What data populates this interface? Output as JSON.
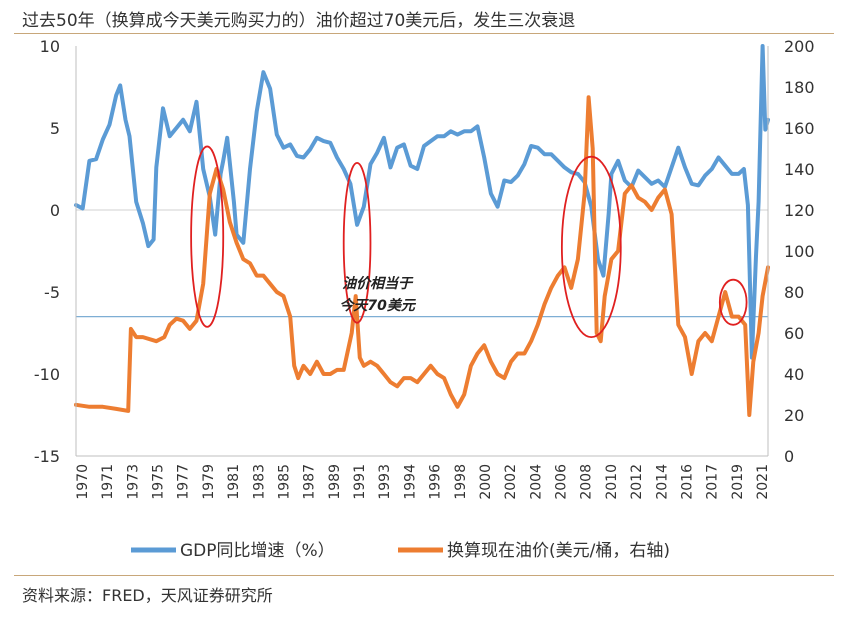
{
  "title": "过去50年（换算成今天美元购买力的）油价超过70美元后，发生三次衰退",
  "source": "资料来源：FRED，天风证券研究所",
  "chart_data": {
    "type": "line",
    "x_tick_labels": [
      "1970",
      "1971",
      "1973",
      "1975",
      "1977",
      "1979",
      "1981",
      "1983",
      "1985",
      "1987",
      "1989",
      "1991",
      "1993",
      "1994",
      "1996",
      "1998",
      "2000",
      "2002",
      "2004",
      "2006",
      "2008",
      "2010",
      "2012",
      "2014",
      "2016",
      "2017",
      "2019",
      "2021"
    ],
    "x_range": [
      1970,
      2021.7
    ],
    "y_left_ticks": [
      "10",
      "5",
      "0",
      "-5",
      "-10",
      "-15"
    ],
    "y_left_range": [
      -15,
      10
    ],
    "y_right_ticks": [
      "200",
      "180",
      "160",
      "140",
      "120",
      "100",
      "80",
      "60",
      "40",
      "20",
      "0"
    ],
    "y_right_range": [
      0,
      200
    ],
    "reference_line": {
      "axis": "right",
      "value": 68
    },
    "annotation": {
      "line1": "油价相当于",
      "line2": "今天70美元",
      "x": 1992.5,
      "y_right": 80
    },
    "highlight_ellipses": [
      {
        "cx": 1979.8,
        "cy_right": 107,
        "rx_years": 1.2,
        "ry_right": 44
      },
      {
        "cx": 1991.0,
        "cy_right": 104,
        "rx_years": 1.0,
        "ry_right": 39
      },
      {
        "cx": 2008.5,
        "cy_right": 102,
        "rx_years": 2.2,
        "ry_right": 44
      },
      {
        "cx": 2019.1,
        "cy_right": 75,
        "rx_years": 1.0,
        "ry_right": 11
      }
    ],
    "colors": {
      "gdp": "#5b9bd5",
      "oil": "#ed7d31",
      "ref": "#7eaed4",
      "ellipse": "#e02020"
    },
    "series": [
      {
        "name": "GDP同比增速（%）",
        "axis": "left",
        "points": [
          [
            1970,
            0.3
          ],
          [
            1970.5,
            0.1
          ],
          [
            1971,
            3.0
          ],
          [
            1971.5,
            3.1
          ],
          [
            1972,
            4.3
          ],
          [
            1972.5,
            5.2
          ],
          [
            1973,
            7.0
          ],
          [
            1973.3,
            7.6
          ],
          [
            1973.7,
            5.5
          ],
          [
            1974,
            4.5
          ],
          [
            1974.5,
            0.5
          ],
          [
            1975,
            -0.8
          ],
          [
            1975.4,
            -2.2
          ],
          [
            1975.8,
            -1.8
          ],
          [
            1976,
            2.6
          ],
          [
            1976.5,
            6.2
          ],
          [
            1977,
            4.5
          ],
          [
            1977.5,
            5.0
          ],
          [
            1978,
            5.5
          ],
          [
            1978.5,
            4.8
          ],
          [
            1979,
            6.6
          ],
          [
            1979.5,
            2.5
          ],
          [
            1980,
            0.8
          ],
          [
            1980.4,
            -1.5
          ],
          [
            1980.8,
            2.2
          ],
          [
            1981,
            3.0
          ],
          [
            1981.3,
            4.4
          ],
          [
            1981.8,
            0.5
          ],
          [
            1982,
            -1.5
          ],
          [
            1982.5,
            -2.0
          ],
          [
            1983,
            2.5
          ],
          [
            1983.5,
            6.0
          ],
          [
            1984,
            8.4
          ],
          [
            1984.5,
            7.4
          ],
          [
            1985,
            4.6
          ],
          [
            1985.5,
            3.8
          ],
          [
            1986,
            4.0
          ],
          [
            1986.5,
            3.3
          ],
          [
            1987,
            3.2
          ],
          [
            1987.5,
            3.7
          ],
          [
            1988,
            4.4
          ],
          [
            1988.5,
            4.2
          ],
          [
            1989,
            4.1
          ],
          [
            1989.5,
            3.2
          ],
          [
            1990,
            2.5
          ],
          [
            1990.5,
            1.6
          ],
          [
            1991,
            -0.9
          ],
          [
            1991.5,
            0.2
          ],
          [
            1992,
            2.8
          ],
          [
            1992.5,
            3.5
          ],
          [
            1993,
            4.4
          ],
          [
            1993.5,
            2.6
          ],
          [
            1994,
            3.8
          ],
          [
            1994.5,
            4.0
          ],
          [
            1995,
            2.7
          ],
          [
            1995.5,
            2.5
          ],
          [
            1996,
            3.9
          ],
          [
            1996.5,
            4.2
          ],
          [
            1997,
            4.5
          ],
          [
            1997.5,
            4.5
          ],
          [
            1998,
            4.8
          ],
          [
            1998.5,
            4.6
          ],
          [
            1999,
            4.8
          ],
          [
            1999.5,
            4.8
          ],
          [
            2000,
            5.1
          ],
          [
            2000.5,
            3.2
          ],
          [
            2001,
            1.0
          ],
          [
            2001.5,
            0.2
          ],
          [
            2002,
            1.8
          ],
          [
            2002.5,
            1.7
          ],
          [
            2003,
            2.1
          ],
          [
            2003.5,
            2.8
          ],
          [
            2004,
            3.9
          ],
          [
            2004.5,
            3.8
          ],
          [
            2005,
            3.4
          ],
          [
            2005.5,
            3.4
          ],
          [
            2006,
            3.0
          ],
          [
            2006.5,
            2.6
          ],
          [
            2007,
            2.3
          ],
          [
            2007.5,
            2.2
          ],
          [
            2008,
            1.7
          ],
          [
            2008.5,
            0.2
          ],
          [
            2009,
            -3.0
          ],
          [
            2009.4,
            -4.0
          ],
          [
            2009.8,
            -0.2
          ],
          [
            2010,
            2.2
          ],
          [
            2010.5,
            3.0
          ],
          [
            2011,
            1.8
          ],
          [
            2011.5,
            1.4
          ],
          [
            2012,
            2.4
          ],
          [
            2012.5,
            2.0
          ],
          [
            2013,
            1.6
          ],
          [
            2013.5,
            1.8
          ],
          [
            2014,
            1.4
          ],
          [
            2014.5,
            2.6
          ],
          [
            2015,
            3.8
          ],
          [
            2015.5,
            2.6
          ],
          [
            2016,
            1.6
          ],
          [
            2016.5,
            1.5
          ],
          [
            2017,
            2.1
          ],
          [
            2017.5,
            2.5
          ],
          [
            2018,
            3.2
          ],
          [
            2018.5,
            2.7
          ],
          [
            2019,
            2.2
          ],
          [
            2019.5,
            2.2
          ],
          [
            2019.9,
            2.5
          ],
          [
            2020.2,
            0.3
          ],
          [
            2020.5,
            -9.0
          ],
          [
            2020.8,
            -2.8
          ],
          [
            2021.0,
            0.5
          ],
          [
            2021.3,
            10.0
          ],
          [
            2021.5,
            4.9
          ],
          [
            2021.7,
            5.5
          ]
        ]
      },
      {
        "name": "换算现在油价(美元/桶，右轴)",
        "axis": "right",
        "points": [
          [
            1970,
            25
          ],
          [
            1971,
            24
          ],
          [
            1972,
            24
          ],
          [
            1973,
            23
          ],
          [
            1973.9,
            22
          ],
          [
            1974.1,
            62
          ],
          [
            1974.5,
            58
          ],
          [
            1975,
            58
          ],
          [
            1976,
            56
          ],
          [
            1976.6,
            58
          ],
          [
            1977,
            64
          ],
          [
            1977.5,
            67
          ],
          [
            1978,
            66
          ],
          [
            1978.5,
            62
          ],
          [
            1979,
            66
          ],
          [
            1979.5,
            84
          ],
          [
            1980,
            128
          ],
          [
            1980.5,
            140
          ],
          [
            1981,
            130
          ],
          [
            1981.5,
            114
          ],
          [
            1982,
            104
          ],
          [
            1982.5,
            96
          ],
          [
            1983,
            94
          ],
          [
            1983.5,
            88
          ],
          [
            1984,
            88
          ],
          [
            1984.5,
            84
          ],
          [
            1985,
            80
          ],
          [
            1985.5,
            78
          ],
          [
            1986,
            68
          ],
          [
            1986.3,
            44
          ],
          [
            1986.6,
            38
          ],
          [
            1987,
            44
          ],
          [
            1987.5,
            40
          ],
          [
            1988,
            46
          ],
          [
            1988.5,
            40
          ],
          [
            1989,
            40
          ],
          [
            1989.5,
            42
          ],
          [
            1990,
            42
          ],
          [
            1990.6,
            60
          ],
          [
            1990.9,
            78
          ],
          [
            1991.2,
            48
          ],
          [
            1991.5,
            44
          ],
          [
            1992,
            46
          ],
          [
            1992.5,
            44
          ],
          [
            1993,
            40
          ],
          [
            1993.5,
            36
          ],
          [
            1994,
            34
          ],
          [
            1994.5,
            38
          ],
          [
            1995,
            38
          ],
          [
            1995.5,
            36
          ],
          [
            1996,
            40
          ],
          [
            1996.5,
            44
          ],
          [
            1997,
            40
          ],
          [
            1997.5,
            38
          ],
          [
            1998,
            30
          ],
          [
            1998.5,
            24
          ],
          [
            1999,
            30
          ],
          [
            1999.5,
            44
          ],
          [
            2000,
            50
          ],
          [
            2000.5,
            54
          ],
          [
            2001,
            46
          ],
          [
            2001.5,
            40
          ],
          [
            2002,
            38
          ],
          [
            2002.5,
            46
          ],
          [
            2003,
            50
          ],
          [
            2003.5,
            50
          ],
          [
            2004,
            56
          ],
          [
            2004.5,
            64
          ],
          [
            2005,
            74
          ],
          [
            2005.5,
            82
          ],
          [
            2006,
            88
          ],
          [
            2006.5,
            92
          ],
          [
            2007,
            82
          ],
          [
            2007.5,
            96
          ],
          [
            2008,
            128
          ],
          [
            2008.3,
            175
          ],
          [
            2008.6,
            150
          ],
          [
            2008.9,
            60
          ],
          [
            2009.2,
            56
          ],
          [
            2009.5,
            78
          ],
          [
            2010,
            96
          ],
          [
            2010.5,
            100
          ],
          [
            2011,
            128
          ],
          [
            2011.5,
            132
          ],
          [
            2012,
            126
          ],
          [
            2012.5,
            124
          ],
          [
            2013,
            120
          ],
          [
            2013.5,
            126
          ],
          [
            2014,
            130
          ],
          [
            2014.5,
            118
          ],
          [
            2015,
            64
          ],
          [
            2015.5,
            58
          ],
          [
            2016,
            40
          ],
          [
            2016.5,
            56
          ],
          [
            2017,
            60
          ],
          [
            2017.5,
            56
          ],
          [
            2018,
            68
          ],
          [
            2018.5,
            80
          ],
          [
            2019,
            68
          ],
          [
            2019.5,
            68
          ],
          [
            2020,
            64
          ],
          [
            2020.3,
            20
          ],
          [
            2020.6,
            46
          ],
          [
            2021,
            60
          ],
          [
            2021.3,
            78
          ],
          [
            2021.7,
            92
          ]
        ]
      }
    ],
    "legend": {
      "position": "bottom"
    }
  }
}
